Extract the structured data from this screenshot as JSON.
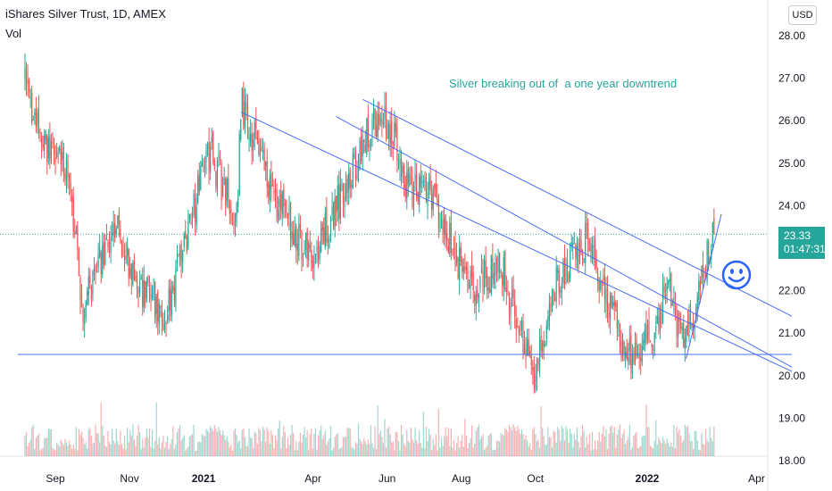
{
  "header": {
    "title": "iShares Silver Trust, 1D, AMEX",
    "vol_label": "Vol"
  },
  "currency_button": "USD",
  "last_price": {
    "price": "23.33",
    "countdown": "01:47:31"
  },
  "annotation": "Silver breaking out of  a one year downtrend",
  "colors": {
    "up": "#26a69a",
    "down": "#ef5350",
    "trendline": "#4a6cf7",
    "last_price_line": "#26a69a",
    "axis_text": "#131722",
    "smiley": "#2962ff"
  },
  "icons": {
    "smiley": "smiley-face-icon"
  },
  "chart_data": {
    "type": "candlestick",
    "symbol": "iShares Silver Trust",
    "interval": "1D",
    "exchange": "AMEX",
    "y_ticks": [
      28.0,
      27.0,
      26.0,
      25.0,
      24.0,
      23.0,
      22.0,
      21.0,
      20.0,
      19.0,
      18.0
    ],
    "y_tick_labels": [
      "28.00",
      "27.00",
      "26.00",
      "25.00",
      "24.00",
      "",
      "22.00",
      "21.00",
      "20.00",
      "19.00",
      "18.00"
    ],
    "x_tick_labels": [
      "Sep",
      "Nov",
      "2021",
      "Apr",
      "Jun",
      "Aug",
      "Oct",
      "2022",
      "Apr"
    ],
    "x_tick_dates": [
      "2020-09",
      "2020-11",
      "2021-01",
      "2021-04",
      "2021-06",
      "2021-08",
      "2021-10",
      "2022-01",
      "2022-04"
    ],
    "last_price": 23.33,
    "support_level": 20.5,
    "anchors": [
      {
        "date": "2020-08-07",
        "price": 26.9
      },
      {
        "date": "2020-08-20",
        "price": 25.5
      },
      {
        "date": "2020-09-10",
        "price": 24.9
      },
      {
        "date": "2020-09-24",
        "price": 21.6
      },
      {
        "date": "2020-10-20",
        "price": 23.5
      },
      {
        "date": "2020-11-09",
        "price": 22.0
      },
      {
        "date": "2020-12-01",
        "price": 21.4
      },
      {
        "date": "2021-01-06",
        "price": 25.3
      },
      {
        "date": "2021-01-28",
        "price": 23.6
      },
      {
        "date": "2021-02-01",
        "price": 26.4
      },
      {
        "date": "2021-03-01",
        "price": 24.2
      },
      {
        "date": "2021-03-31",
        "price": 22.7
      },
      {
        "date": "2021-05-18",
        "price": 25.8
      },
      {
        "date": "2021-06-01",
        "price": 26.1
      },
      {
        "date": "2021-06-18",
        "price": 24.4
      },
      {
        "date": "2021-07-06",
        "price": 24.3
      },
      {
        "date": "2021-08-09",
        "price": 22.0
      },
      {
        "date": "2021-09-03",
        "price": 22.6
      },
      {
        "date": "2021-09-29",
        "price": 20.0
      },
      {
        "date": "2021-10-20",
        "price": 22.3
      },
      {
        "date": "2021-11-12",
        "price": 23.2
      },
      {
        "date": "2021-12-15",
        "price": 20.5
      },
      {
        "date": "2022-01-04",
        "price": 20.8
      },
      {
        "date": "2022-01-19",
        "price": 22.3
      },
      {
        "date": "2022-01-28",
        "price": 20.8
      },
      {
        "date": "2022-02-08",
        "price": 21.2
      },
      {
        "date": "2022-02-18",
        "price": 22.6
      },
      {
        "date": "2022-02-25",
        "price": 23.3
      }
    ],
    "trendlines": [
      {
        "name": "channel-upper",
        "from": {
          "date": "2021-05-12",
          "price": 26.5
        },
        "to": {
          "date": "2022-04-30",
          "price": 21.4
        }
      },
      {
        "name": "channel-middle",
        "from": {
          "date": "2021-04-20",
          "price": 26.1
        },
        "to": {
          "date": "2022-04-30",
          "price": 20.2
        }
      },
      {
        "name": "channel-lower",
        "from": {
          "date": "2021-02-01",
          "price": 26.2
        },
        "to": {
          "date": "2022-04-30",
          "price": 20.1
        }
      },
      {
        "name": "breakout-line",
        "from": {
          "date": "2022-02-02",
          "price": 20.4
        },
        "to": {
          "date": "2022-03-03",
          "price": 23.8
        }
      },
      {
        "name": "support-line",
        "from": {
          "date": "2020-08-01",
          "price": 20.5
        },
        "to": {
          "date": "2022-04-30",
          "price": 20.5
        }
      }
    ]
  }
}
